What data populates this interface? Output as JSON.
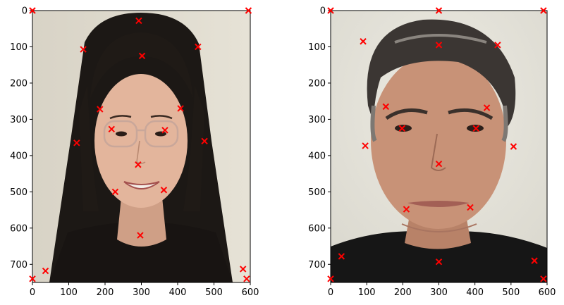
{
  "colors": {
    "marker": "#ff0000",
    "axes_frame": "#000000",
    "background": "#ffffff"
  },
  "chart_data": [
    {
      "type": "scatter",
      "title": "",
      "xlabel": "",
      "ylabel": "",
      "xlim": [
        0,
        600
      ],
      "ylim": [
        750,
        0
      ],
      "y_axis_inverted": true,
      "grid": false,
      "background_image": "photo-portrait-woman",
      "marker": "x",
      "x_ticks": [
        "0",
        "100",
        "200",
        "300",
        "400",
        "500",
        "600"
      ],
      "y_ticks": [
        "0",
        "100",
        "200",
        "300",
        "400",
        "500",
        "600",
        "700"
      ],
      "points": [
        {
          "x": 0,
          "y": 0
        },
        {
          "x": 595,
          "y": 0
        },
        {
          "x": 293,
          "y": 28
        },
        {
          "x": 140,
          "y": 107
        },
        {
          "x": 456,
          "y": 100
        },
        {
          "x": 302,
          "y": 125
        },
        {
          "x": 186,
          "y": 272
        },
        {
          "x": 408,
          "y": 270
        },
        {
          "x": 218,
          "y": 327
        },
        {
          "x": 365,
          "y": 330
        },
        {
          "x": 122,
          "y": 365
        },
        {
          "x": 474,
          "y": 360
        },
        {
          "x": 291,
          "y": 425
        },
        {
          "x": 228,
          "y": 500
        },
        {
          "x": 362,
          "y": 495
        },
        {
          "x": 297,
          "y": 620
        },
        {
          "x": 0,
          "y": 740
        },
        {
          "x": 36,
          "y": 718
        },
        {
          "x": 580,
          "y": 713
        },
        {
          "x": 590,
          "y": 740
        }
      ]
    },
    {
      "type": "scatter",
      "title": "",
      "xlabel": "",
      "ylabel": "",
      "xlim": [
        0,
        600
      ],
      "ylim": [
        750,
        0
      ],
      "y_axis_inverted": true,
      "grid": false,
      "background_image": "photo-portrait-man",
      "marker": "x",
      "x_ticks": [
        "0",
        "100",
        "200",
        "300",
        "400",
        "500",
        "600"
      ],
      "y_ticks": [
        "0",
        "100",
        "200",
        "300",
        "400",
        "500",
        "600",
        "700"
      ],
      "points": [
        {
          "x": 0,
          "y": 0
        },
        {
          "x": 590,
          "y": 0
        },
        {
          "x": 300,
          "y": 0
        },
        {
          "x": 90,
          "y": 85
        },
        {
          "x": 463,
          "y": 95
        },
        {
          "x": 300,
          "y": 95
        },
        {
          "x": 153,
          "y": 265
        },
        {
          "x": 433,
          "y": 268
        },
        {
          "x": 198,
          "y": 325
        },
        {
          "x": 403,
          "y": 325
        },
        {
          "x": 96,
          "y": 373
        },
        {
          "x": 507,
          "y": 375
        },
        {
          "x": 300,
          "y": 423
        },
        {
          "x": 210,
          "y": 548
        },
        {
          "x": 387,
          "y": 543
        },
        {
          "x": 300,
          "y": 693
        },
        {
          "x": 0,
          "y": 740
        },
        {
          "x": 30,
          "y": 678
        },
        {
          "x": 565,
          "y": 690
        },
        {
          "x": 590,
          "y": 740
        }
      ]
    }
  ]
}
